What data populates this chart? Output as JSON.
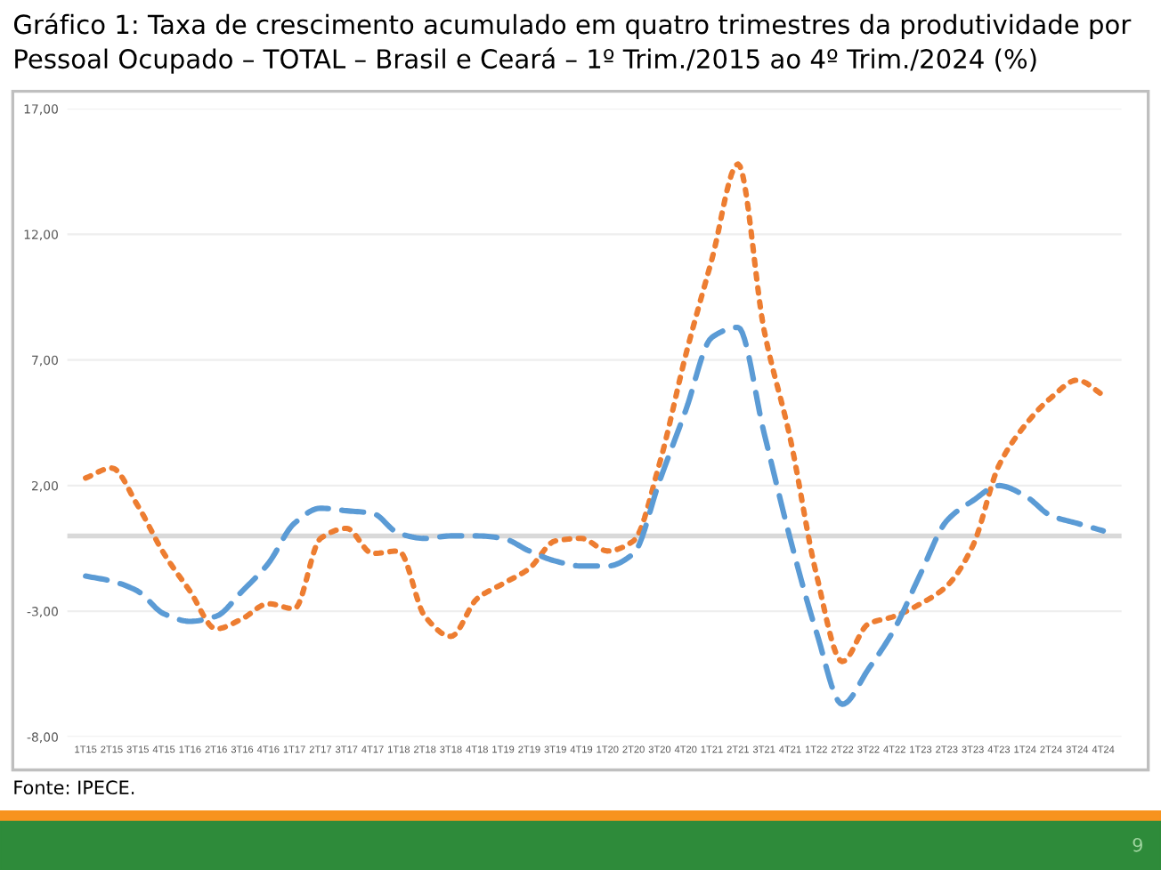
{
  "chart_data": {
    "type": "line",
    "title": "Gráfico 1: Taxa de crescimento acumulado em quatro trimestres da produtividade por Pessoal Ocupado – TOTAL – Brasil e Ceará – 1º Trim./2015 ao 4º Trim./2024 (%)",
    "categories": [
      "1T15",
      "2T15",
      "3T15",
      "4T15",
      "1T16",
      "2T16",
      "3T16",
      "4T16",
      "1T17",
      "2T17",
      "3T17",
      "4T17",
      "1T18",
      "2T18",
      "3T18",
      "4T18",
      "1T19",
      "2T19",
      "3T19",
      "4T19",
      "1T20",
      "2T20",
      "3T20",
      "4T20",
      "1T21",
      "2T21",
      "3T21",
      "4T21",
      "1T22",
      "2T22",
      "3T22",
      "4T22",
      "1T23",
      "2T23",
      "3T23",
      "4T23",
      "1T24",
      "2T24",
      "3T24",
      "4T24"
    ],
    "series": [
      {
        "color": "#ed7d31",
        "line_style": "dotted",
        "values": [
          2.3,
          2.7,
          1.2,
          -0.7,
          -2.2,
          -3.7,
          -3.3,
          -2.7,
          -2.9,
          -0.1,
          0.3,
          -0.7,
          -0.6,
          -3.2,
          -4.0,
          -2.5,
          -1.9,
          -1.3,
          -0.2,
          -0.1,
          -0.6,
          -0.2,
          2.9,
          7.2,
          11.0,
          14.8,
          8.2,
          3.9,
          -1.5,
          -5.0,
          -3.5,
          -3.2,
          -2.7,
          -2.0,
          -0.4,
          2.8,
          4.4,
          5.5,
          6.2,
          5.6
        ]
      },
      {
        "color": "#5b9bd5",
        "line_style": "dashed",
        "values": [
          -1.6,
          -1.8,
          -2.2,
          -3.1,
          -3.4,
          -3.2,
          -2.2,
          -1.1,
          0.5,
          1.1,
          1.0,
          0.9,
          0.1,
          -0.1,
          0.0,
          0.0,
          -0.1,
          -0.6,
          -1.0,
          -1.2,
          -1.2,
          -0.7,
          2.2,
          5.0,
          7.9,
          8.3,
          4.1,
          -0.1,
          -3.8,
          -6.7,
          -5.3,
          -3.7,
          -1.5,
          0.6,
          1.4,
          2.0,
          1.6,
          0.8,
          0.5,
          0.2
        ]
      }
    ],
    "ylim": [
      -8,
      17
    ],
    "yticks": [
      {
        "value": -8,
        "label": "-8,00"
      },
      {
        "value": -3,
        "label": "-3,00"
      },
      {
        "value": 2,
        "label": "2,00"
      },
      {
        "value": 7,
        "label": "7,00"
      },
      {
        "value": 12,
        "label": "12,00"
      },
      {
        "value": 17,
        "label": "17,00"
      }
    ],
    "grid": "y",
    "ref_lines": [
      {
        "axis": "y",
        "value": 0,
        "color": "#d9d9d9"
      }
    ],
    "annotations": [
      "Fonte: IPECE.",
      "9"
    ]
  }
}
